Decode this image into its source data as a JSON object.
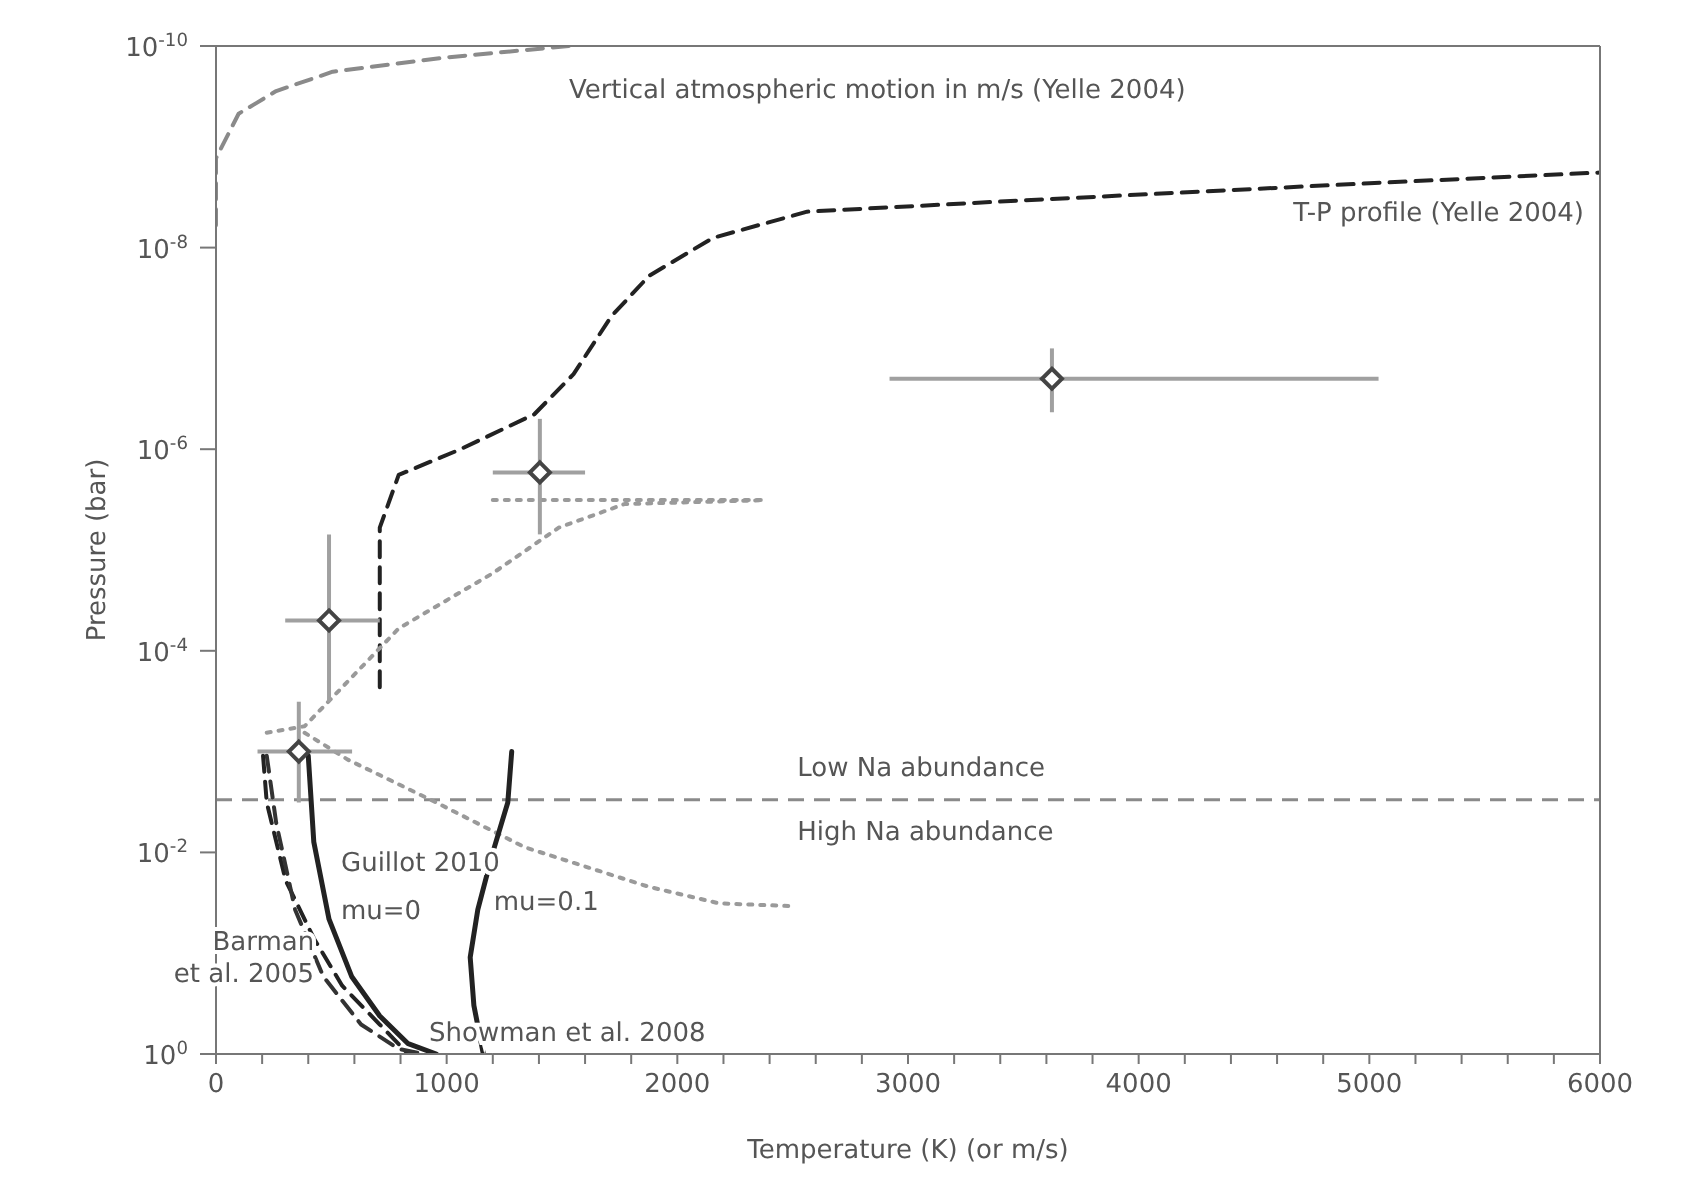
{
  "chart_data": {
    "type": "line",
    "xlabel": "Temperature (K)   (or m/s)",
    "ylabel": "Pressure  (bar)",
    "xlim": [
      0,
      6000
    ],
    "xticks": [
      0,
      {
        "value": 200,
        "label": null
      },
      {
        "value": 400,
        "label": null
      },
      {
        "value": 600,
        "label": null
      },
      {
        "value": 800,
        "label": null
      },
      1000,
      {
        "value": 1200,
        "label": null
      },
      {
        "value": 1400,
        "label": null
      },
      {
        "value": 1600,
        "label": null
      },
      {
        "value": 1800,
        "label": null
      },
      2000,
      {
        "value": 2200,
        "label": null
      },
      {
        "value": 2400,
        "label": null
      },
      {
        "value": 2600,
        "label": null
      },
      {
        "value": 2800,
        "label": null
      },
      3000,
      {
        "value": 3200,
        "label": null
      },
      {
        "value": 3400,
        "label": null
      },
      {
        "value": 3600,
        "label": null
      },
      {
        "value": 3800,
        "label": null
      },
      4000,
      {
        "value": 4200,
        "label": null
      },
      {
        "value": 4400,
        "label": null
      },
      {
        "value": 4600,
        "label": null
      },
      {
        "value": 4800,
        "label": null
      },
      5000,
      {
        "value": 5200,
        "label": null
      },
      {
        "value": 5400,
        "label": null
      },
      {
        "value": 5600,
        "label": null
      },
      {
        "value": 5800,
        "label": null
      },
      6000
    ],
    "ylim": [
      1,
      1e-10
    ],
    "log": "y",
    "yticks": [
      {
        "value": 1e-10,
        "label": "10$^{-10}$"
      },
      {
        "value": 1e-08,
        "label": "10$^{-8}$"
      },
      {
        "value": 1e-06,
        "label": "10$^{-6}$"
      },
      {
        "value": 0.0001,
        "label": "10$^{-4}$"
      },
      {
        "value": 0.01,
        "label": "10$^{-2}$"
      },
      {
        "value": 1,
        "label": "10$^{0}$"
      }
    ],
    "series": [
      {
        "name": "Vertical atmospheric motion in m/s (Yelle 2004)",
        "color": "#8a8a8a",
        "line_style": "dashed",
        "x": [
          0,
          0,
          98,
          261,
          506,
          996,
          1530
        ],
        "values": [
          6e-09,
          1.3e-09,
          4.7e-10,
          2.8e-10,
          1.8e-10,
          1.3e-10,
          1e-10
        ]
      },
      {
        "name": "T-P profile (Yelle 2004)",
        "color": "#222222",
        "line_style": "dashed",
        "x": [
          710,
          710,
          710,
          792,
          1060,
          1380,
          1550,
          1714,
          1878,
          2155,
          2563,
          3500,
          5000,
          6000
        ],
        "values": [
          0.00023,
          2.6e-05,
          6e-06,
          1.8e-06,
          1e-06,
          4.5e-07,
          1.8e-07,
          4.8e-08,
          1.9e-08,
          8e-09,
          4.4e-09,
          3.4e-09,
          2.3e-09,
          1.8e-09
        ]
      },
      {
        "color": "#9a9a9a",
        "line_style": "dotted",
        "x": [
          220,
          384,
          547,
          792,
          1200,
          1486,
          1771,
          2384
        ],
        "values": [
          0.00065,
          0.00056,
          0.00023,
          6e-05,
          1.7e-05,
          6e-06,
          3.5e-06,
          3.2e-06
        ]
      },
      {
        "color": "#9a9a9a",
        "line_style": "dotted",
        "x": [
          1200,
          2384
        ],
        "values": [
          3.2e-06,
          3.2e-06
        ]
      },
      {
        "color": "#9a9a9a",
        "line_style": "dotted",
        "x": [
          384,
          571,
          955,
          1339,
          1878,
          2180,
          2482
        ],
        "values": [
          0.00065,
          0.0012,
          0.0032,
          0.0089,
          0.022,
          0.032,
          0.034
        ]
      },
      {
        "name": "mu=0",
        "color": "#222222",
        "line_style": "solid",
        "x": [
          400,
          424,
          490,
          588,
          710,
          833,
          955
        ],
        "values": [
          0.0011,
          0.0079,
          0.046,
          0.17,
          0.42,
          0.79,
          1
        ]
      },
      {
        "name": "mu=0.1",
        "color": "#222222",
        "line_style": "solid",
        "x": [
          1282,
          1265,
          1200,
          1135,
          1102,
          1118,
          1159
        ],
        "values": [
          0.001,
          0.0032,
          0.01,
          0.037,
          0.11,
          0.33,
          1
        ]
      },
      {
        "name": "Barman et al. 2005",
        "color": "#222222",
        "line_style": "dashed",
        "x": [
          204,
          220,
          302,
          424,
          547,
          710,
          833
        ],
        "values": [
          0.0011,
          0.0032,
          0.019,
          0.071,
          0.21,
          0.51,
          1
        ]
      },
      {
        "name": "Showman et al. 2008",
        "color": "#333333",
        "line_style": "dashed",
        "x": [
          220,
          261,
          343,
          465,
          629,
          792,
          900
        ],
        "values": [
          0.0011,
          0.0051,
          0.037,
          0.17,
          0.51,
          0.89,
          1
        ]
      },
      {
        "type": "scatter",
        "color": "#444444",
        "marker": "diamond",
        "x": [
          490,
          1404,
          3624,
          359
        ],
        "values": [
          5e-05,
          1.7e-06,
          2e-07,
          0.001
        ],
        "errors": [
          [
            7e-06,
            0.00032
          ],
          [
            5e-07,
            7e-06
          ],
          [
            1e-07,
            4.3e-07
          ],
          [
            0.00032,
            0.0032
          ]
        ],
        "xerrors": [
          [
            300,
            710
          ],
          [
            1200,
            1600
          ],
          [
            2920,
            5040
          ],
          [
            180,
            590
          ]
        ]
      }
    ],
    "ref_lines": [
      {
        "axis": "y",
        "value": 0.003,
        "color": "#8a8a8a",
        "line_style": "dashed"
      }
    ],
    "annotations": [
      "Guillot 2010",
      "Low Na abundance",
      "High Na abundance"
    ]
  }
}
